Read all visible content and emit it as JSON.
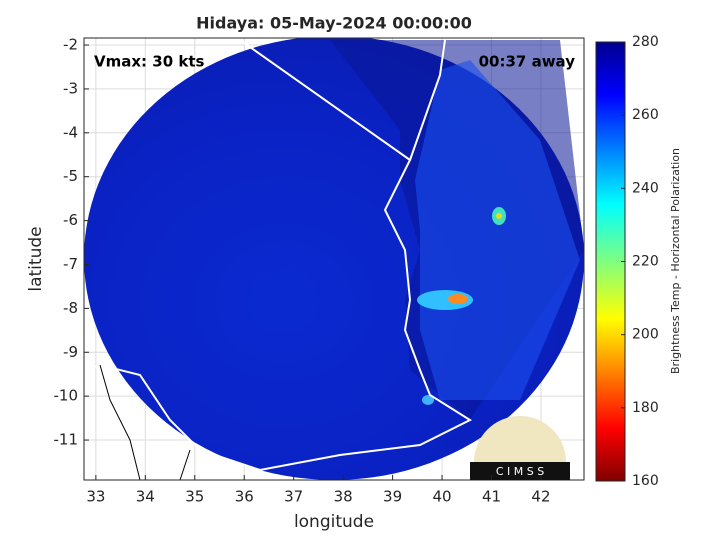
{
  "title": "Hidaya: 05-May-2024 00:00:00",
  "annotations": {
    "left": "Vmax: 30 kts",
    "right": "00:37 away"
  },
  "x_label": "longitude",
  "y_label": "latitude",
  "xlim": [
    32.76,
    42.87
  ],
  "xticks": [
    33,
    34,
    35,
    36,
    37,
    38,
    39,
    40,
    41,
    42
  ],
  "ylim": [
    -11.91,
    -1.84
  ],
  "yticks": [
    -2,
    -3,
    -4,
    -5,
    -6,
    -7,
    -8,
    -9,
    -10,
    -11
  ],
  "colorbar": {
    "label": "Brightness Temp - Horizontal Polarization",
    "lim": [
      160,
      280
    ],
    "ticks": [
      160,
      180,
      200,
      220,
      240,
      260,
      280
    ]
  },
  "logo": "C I M S S"
}
